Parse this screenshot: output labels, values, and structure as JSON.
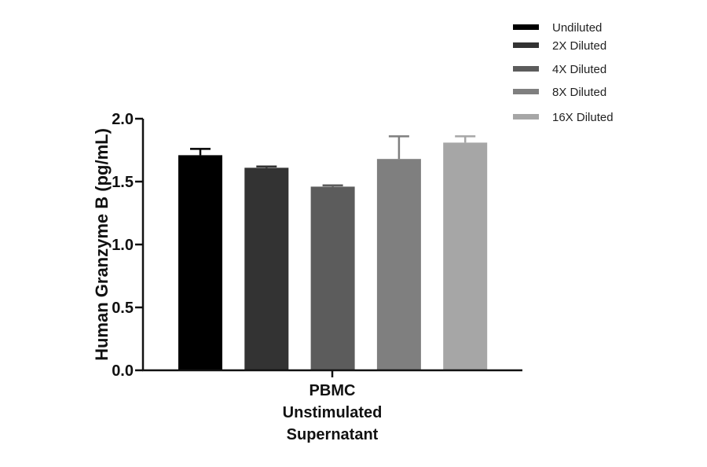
{
  "chart_data": {
    "type": "bar",
    "title": "",
    "xlabel": "",
    "ylabel": "Human Granzyme B (pg/mL)",
    "ylim": [
      0,
      2.0
    ],
    "yticks": [
      "0.0",
      "0.5",
      "1.0",
      "1.5",
      "2.0"
    ],
    "group_label_lines": [
      "PBMC",
      "Unstimulated",
      "Supernatant"
    ],
    "series": [
      {
        "name": "Undiluted",
        "value": 1.71,
        "error": 0.05,
        "color": "#000000"
      },
      {
        "name": "2X Diluted",
        "value": 1.61,
        "error": 0.01,
        "color": "#333333"
      },
      {
        "name": "4X Diluted",
        "value": 1.46,
        "error": 0.01,
        "color": "#5c5c5c"
      },
      {
        "name": "8X Diluted",
        "value": 1.68,
        "error": 0.18,
        "color": "#7f7f7f"
      },
      {
        "name": "16X Diluted",
        "value": 1.81,
        "error": 0.05,
        "color": "#a6a6a6"
      }
    ],
    "grid": false,
    "legend_position": "top-right"
  }
}
